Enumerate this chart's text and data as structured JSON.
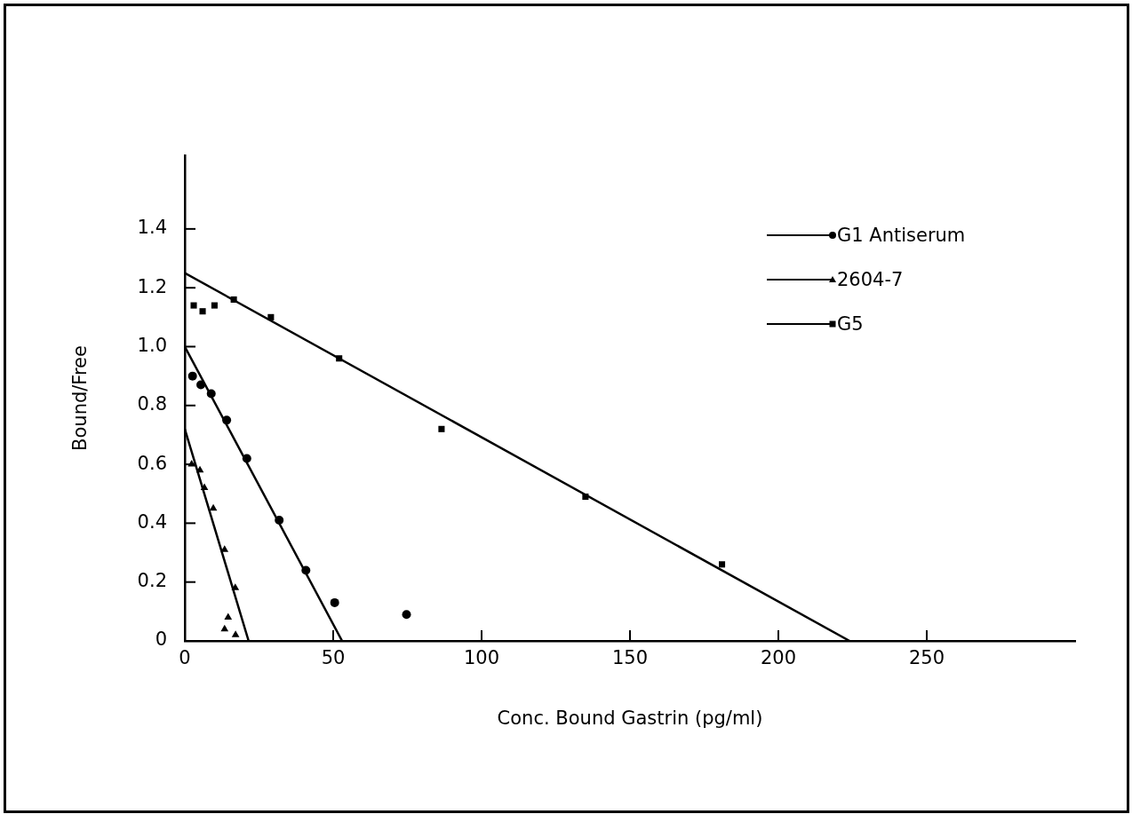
{
  "chart_data": {
    "type": "scatter",
    "xlabel": "Conc. Bound Gastrin (pg/ml)",
    "ylabel": "Bound/Free",
    "xlim": [
      0,
      300
    ],
    "xticks": [
      0,
      50,
      100,
      150,
      200,
      250
    ],
    "ylim": [
      0,
      1.65
    ],
    "yticks": [
      0,
      {
        "value": 0.2,
        "label": "0.2"
      },
      {
        "value": 0.4,
        "label": "0.4"
      },
      {
        "value": 0.6,
        "label": "0.6"
      },
      {
        "value": 0.8,
        "label": "0.8"
      },
      {
        "value": 1,
        "label": "1.0"
      },
      {
        "value": 1.2,
        "label": "1.2"
      },
      {
        "value": 1.4,
        "label": "1.4"
      }
    ],
    "grid": false,
    "legend": "top right",
    "series": [
      {
        "name": "G1 Antiserum",
        "marker": "circle",
        "color": "#000000",
        "x": [
          2.6,
          5.4,
          8.9,
          14.1,
          20.9,
          31.8,
          40.8,
          50.5,
          74.7
        ],
        "values": [
          0.9,
          0.87,
          0.84,
          0.75,
          0.62,
          0.41,
          0.24,
          0.13,
          0.09
        ]
      },
      {
        "name": "2604-7",
        "marker": "triangle",
        "color": "#000000",
        "x": [
          2.3,
          5.1,
          6.6,
          9.6,
          13.4,
          17.0,
          14.6,
          13.4,
          17.1
        ],
        "values": [
          0.6,
          0.58,
          0.52,
          0.45,
          0.31,
          0.18,
          0.08,
          0.04,
          0.02
        ]
      },
      {
        "name": "G5",
        "marker": "square",
        "color": "#000000",
        "x": [
          3,
          6,
          10,
          16.5,
          29,
          52,
          86.5,
          135,
          181
        ],
        "values": [
          1.14,
          1.12,
          1.14,
          1.16,
          1.1,
          0.96,
          0.72,
          0.49,
          0.26
        ]
      },
      {
        "type": "line",
        "marker": "none",
        "color": "#000000",
        "x": [
          0,
          53
        ],
        "values": [
          1.0,
          0
        ]
      },
      {
        "type": "line",
        "marker": "none",
        "color": "#000000",
        "x": [
          0,
          21.5
        ],
        "values": [
          0.72,
          0
        ]
      },
      {
        "type": "line",
        "marker": "none",
        "color": "#000000",
        "x": [
          0,
          224
        ],
        "values": [
          1.25,
          0
        ]
      }
    ]
  }
}
